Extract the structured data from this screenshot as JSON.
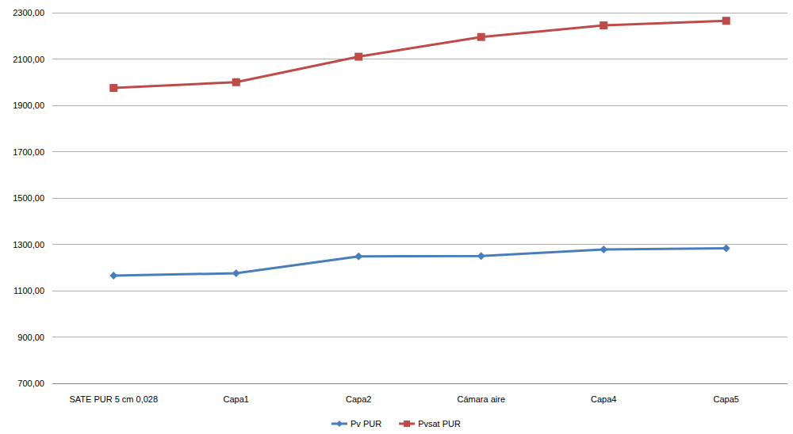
{
  "chart_data": {
    "type": "line",
    "categories": [
      "SATE PUR 5 cm 0,028",
      "Capa1",
      "Capa2",
      "Cámara aire",
      "Capa4",
      "Capa5"
    ],
    "series": [
      {
        "name": "Pv PUR",
        "color": "#4a7ebb",
        "marker": "diamond",
        "values": [
          1165,
          1175,
          1248,
          1250,
          1278,
          1283
        ]
      },
      {
        "name": "Pvsat PUR",
        "color": "#be4b48",
        "marker": "square",
        "values": [
          1975,
          2000,
          2110,
          2195,
          2245,
          2265
        ]
      }
    ],
    "ylim": [
      700,
      2300
    ],
    "yticks": [
      {
        "value": 700,
        "label": "700,00"
      },
      {
        "value": 900,
        "label": "900,00"
      },
      {
        "value": 1100,
        "label": "1100,00"
      },
      {
        "value": 1300,
        "label": "1300,00"
      },
      {
        "value": 1500,
        "label": "1500,00"
      },
      {
        "value": 1700,
        "label": "1700,00"
      },
      {
        "value": 1900,
        "label": "1900,00"
      },
      {
        "value": 2100,
        "label": "2100,00"
      },
      {
        "value": 2300,
        "label": "2300,00"
      }
    ],
    "grid": true,
    "legend": "bottom"
  }
}
